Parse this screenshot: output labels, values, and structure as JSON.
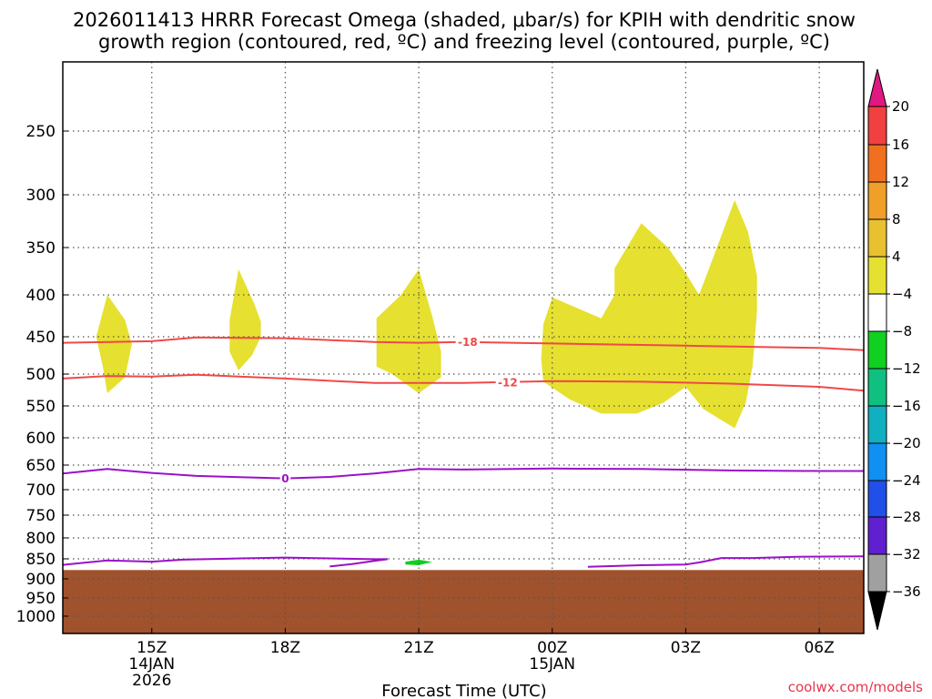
{
  "chart_data": {
    "type": "time-height cross section",
    "title_lines": [
      "2026011413 HRRR Forecast Omega (shaded, μbar/s) for KPIH with dendritic snow",
      "growth region (contoured, red, ºC) and freezing level (contoured, purple, ºC)"
    ],
    "xlabel": "Forecast Time (UTC)",
    "credit": "coolwx.com/models",
    "x_range_hours": [
      13.0,
      31.0
    ],
    "y_range_hPa": [
      200,
      1030
    ],
    "y_ticks": [
      250,
      300,
      350,
      400,
      450,
      500,
      550,
      600,
      650,
      700,
      750,
      800,
      850,
      900,
      950,
      1000
    ],
    "x_ticks": [
      {
        "hour": 15,
        "lines": [
          "15Z",
          "14JAN",
          "2026"
        ]
      },
      {
        "hour": 18,
        "lines": [
          "18Z"
        ]
      },
      {
        "hour": 21,
        "lines": [
          "21Z"
        ]
      },
      {
        "hour": 24,
        "lines": [
          "00Z",
          "15JAN"
        ]
      },
      {
        "hour": 27,
        "lines": [
          "03Z"
        ]
      },
      {
        "hour": 30,
        "lines": [
          "06Z"
        ]
      }
    ],
    "ground_level_hPa": 878,
    "colorbar": {
      "labels": [
        "20",
        "16",
        "12",
        "8",
        "4",
        "-4",
        "-8",
        "-12",
        "-16",
        "-20",
        "-24",
        "-28",
        "-32",
        "-36"
      ],
      "bins": [
        {
          "lo": 16,
          "hi": 20,
          "color": "#f04040"
        },
        {
          "lo": 12,
          "hi": 16,
          "color": "#f07020"
        },
        {
          "lo": 8,
          "hi": 12,
          "color": "#f0a028"
        },
        {
          "lo": 4,
          "hi": 8,
          "color": "#e8c030"
        },
        {
          "lo": 0,
          "hi": 4,
          "color": "#e6e030"
        },
        {
          "lo": -4,
          "hi": 4,
          "color": "#ffffff"
        },
        {
          "lo": -8,
          "hi": -4,
          "color": "#10d020"
        },
        {
          "lo": -12,
          "hi": -8,
          "color": "#10c080"
        },
        {
          "lo": -16,
          "hi": -12,
          "color": "#10b0c0"
        },
        {
          "lo": -20,
          "hi": -16,
          "color": "#1090f0"
        },
        {
          "lo": -24,
          "hi": -20,
          "color": "#2050e8"
        },
        {
          "lo": -28,
          "hi": -24,
          "color": "#6020d0"
        },
        {
          "lo": -32,
          "hi": -28,
          "color": "#9010c0"
        },
        {
          "lo": -36,
          "hi": -32,
          "color": "#a0a0a0"
        }
      ],
      "top_arrow_color": "#e01880",
      "bottom_arrow_color": "#000000"
    },
    "shaded_regions": [
      {
        "name": "omega-blob-1",
        "color": "#e6e030",
        "points": [
          [
            14.0,
            400
          ],
          [
            14.4,
            430
          ],
          [
            14.55,
            460
          ],
          [
            14.4,
            505
          ],
          [
            14.0,
            530
          ],
          [
            13.9,
            490
          ],
          [
            13.75,
            450
          ]
        ]
      },
      {
        "name": "omega-blob-2",
        "color": "#e6e030",
        "points": [
          [
            16.95,
            373
          ],
          [
            17.3,
            410
          ],
          [
            17.45,
            432
          ],
          [
            17.45,
            450
          ],
          [
            17.25,
            475
          ],
          [
            16.95,
            495
          ],
          [
            16.75,
            470
          ],
          [
            16.75,
            430
          ]
        ]
      },
      {
        "name": "omega-blob-3",
        "color": "#e6e030",
        "points": [
          [
            21.0,
            373
          ],
          [
            21.3,
            425
          ],
          [
            21.5,
            470
          ],
          [
            21.5,
            505
          ],
          [
            21.0,
            530
          ],
          [
            20.4,
            500
          ],
          [
            20.05,
            490
          ],
          [
            20.05,
            428
          ],
          [
            20.6,
            400
          ]
        ]
      },
      {
        "name": "omega-blob-4",
        "color": "#e6e030",
        "points": [
          [
            24.0,
            403
          ],
          [
            25.1,
            428
          ],
          [
            25.4,
            400
          ],
          [
            25.4,
            372
          ],
          [
            26.0,
            327
          ],
          [
            26.6,
            350
          ],
          [
            27.0,
            377
          ],
          [
            27.3,
            400
          ],
          [
            27.7,
            350
          ],
          [
            28.1,
            305
          ],
          [
            28.4,
            335
          ],
          [
            28.6,
            380
          ],
          [
            28.6,
            420
          ],
          [
            28.5,
            490
          ],
          [
            28.35,
            545
          ],
          [
            28.1,
            585
          ],
          [
            27.4,
            555
          ],
          [
            27.0,
            520
          ],
          [
            26.5,
            545
          ],
          [
            25.9,
            562
          ],
          [
            25.1,
            562
          ],
          [
            24.4,
            540
          ],
          [
            23.8,
            512
          ],
          [
            23.75,
            480
          ],
          [
            23.8,
            435
          ]
        ]
      },
      {
        "name": "omega-blob-5",
        "color": "#10d020",
        "points": [
          [
            20.7,
            857
          ],
          [
            21.0,
            852
          ],
          [
            21.3,
            858
          ],
          [
            21.0,
            866
          ],
          [
            20.7,
            864
          ]
        ]
      }
    ],
    "contours": [
      {
        "name": "isotherm--18",
        "color": "#f04848",
        "label": "-18",
        "label_at": [
          22.1,
          457
        ],
        "points": [
          [
            13.0,
            458
          ],
          [
            15.0,
            456
          ],
          [
            16.0,
            451
          ],
          [
            18.0,
            452
          ],
          [
            20.0,
            457
          ],
          [
            21.0,
            458
          ],
          [
            22.0,
            457
          ],
          [
            24.0,
            459
          ],
          [
            27.0,
            462
          ],
          [
            29.0,
            464
          ],
          [
            30.0,
            465
          ],
          [
            31.0,
            468
          ]
        ]
      },
      {
        "name": "isotherm--12",
        "color": "#f04848",
        "label": "-12",
        "label_at": [
          23.0,
          513
        ],
        "points": [
          [
            13.0,
            507
          ],
          [
            14.0,
            503
          ],
          [
            15.0,
            504
          ],
          [
            16.0,
            501
          ],
          [
            18.0,
            507
          ],
          [
            20.0,
            514
          ],
          [
            22.0,
            514
          ],
          [
            24.0,
            511
          ],
          [
            26.0,
            512
          ],
          [
            28.0,
            515
          ],
          [
            30.0,
            520
          ],
          [
            31.0,
            526
          ]
        ]
      },
      {
        "name": "isotherm-0",
        "color": "#9b10c8",
        "label": "0",
        "label_at": [
          18.0,
          677
        ],
        "points": [
          [
            13.0,
            667
          ],
          [
            14.0,
            658
          ],
          [
            15.0,
            666
          ],
          [
            16.0,
            672
          ],
          [
            18.0,
            677
          ],
          [
            19.0,
            674
          ],
          [
            20.0,
            667
          ],
          [
            21.0,
            658
          ],
          [
            22.0,
            659
          ],
          [
            24.0,
            657
          ],
          [
            26.0,
            658
          ],
          [
            28.0,
            661
          ],
          [
            30.0,
            662
          ],
          [
            31.0,
            662
          ]
        ]
      },
      {
        "name": "isotherm-0-low-a",
        "color": "#9b10c8",
        "label": "",
        "label_at": null,
        "points": [
          [
            13.0,
            865
          ],
          [
            14.0,
            854
          ],
          [
            15.0,
            857
          ],
          [
            15.7,
            852
          ],
          [
            17.0,
            849
          ],
          [
            18.0,
            847
          ],
          [
            19.0,
            849
          ],
          [
            20.0,
            851
          ],
          [
            20.3,
            851
          ],
          [
            20.0,
            855
          ],
          [
            19.5,
            863
          ],
          [
            19.0,
            869
          ]
        ]
      },
      {
        "name": "isotherm-0-low-b",
        "color": "#9b10c8",
        "label": "",
        "label_at": null,
        "points": [
          [
            24.8,
            870
          ],
          [
            26.0,
            866
          ],
          [
            27.0,
            864
          ],
          [
            27.3,
            859
          ],
          [
            27.8,
            848
          ],
          [
            28.5,
            848
          ],
          [
            29.5,
            845
          ],
          [
            31.0,
            844
          ]
        ]
      }
    ]
  }
}
